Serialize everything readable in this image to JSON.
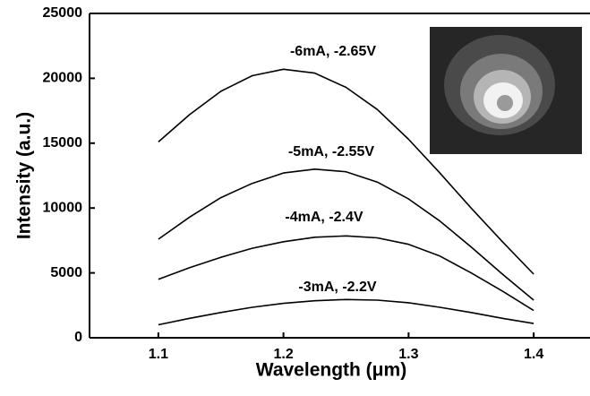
{
  "chart_data": {
    "type": "line",
    "x_label": "Wavelength (μm)",
    "y_label": "Intensity (a.u.)",
    "x": [
      1.1,
      1.125,
      1.15,
      1.175,
      1.2,
      1.225,
      1.25,
      1.275,
      1.3,
      1.325,
      1.35,
      1.375,
      1.4
    ],
    "series": [
      {
        "name": "-6mA, -2.65V",
        "color": "#000000",
        "values": [
          15100,
          17200,
          19000,
          20200,
          20700,
          20400,
          19300,
          17600,
          15300,
          12700,
          10000,
          7400,
          4900
        ]
      },
      {
        "name": "-5mA, -2.55V",
        "color": "#000000",
        "values": [
          7600,
          9300,
          10800,
          11900,
          12700,
          13000,
          12800,
          12000,
          10700,
          9000,
          7000,
          4900,
          2900
        ]
      },
      {
        "name": "-4mA, -2.4V",
        "color": "#000000",
        "values": [
          4500,
          5400,
          6200,
          6900,
          7400,
          7750,
          7850,
          7700,
          7200,
          6300,
          5000,
          3600,
          2100
        ]
      },
      {
        "name": "-3mA, -2.2V",
        "color": "#000000",
        "values": [
          1000,
          1500,
          1950,
          2350,
          2650,
          2850,
          2950,
          2900,
          2700,
          2350,
          1950,
          1500,
          1100
        ]
      }
    ],
    "xlim": [
      1.045,
      1.445
    ],
    "xticks": [
      1.1,
      1.2,
      1.3,
      1.4
    ],
    "ylim": [
      0,
      25000
    ],
    "yticks": [
      0,
      5000,
      10000,
      15000,
      20000,
      25000
    ]
  }
}
